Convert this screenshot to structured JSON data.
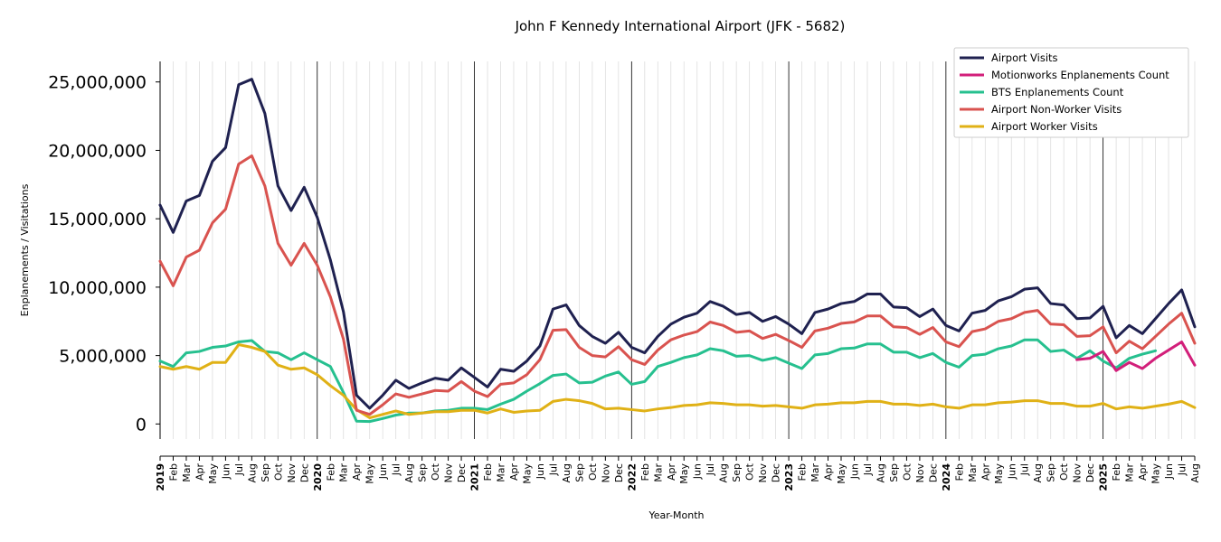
{
  "chart_data": {
    "type": "line",
    "title": "John F Kennedy International Airport (JFK - 5682)",
    "xlabel": "Year-Month",
    "ylabel": "Enplanements / Visitations",
    "ylim": [
      -1100000,
      26500000
    ],
    "yticks": [
      0,
      5000000,
      10000000,
      15000000,
      20000000,
      25000000
    ],
    "ytick_labels": [
      "0",
      "5,000,000",
      "10,000,000",
      "15,000,000",
      "20,000,000",
      "25,000,000"
    ],
    "grid": "vertical month lines, dark lines at year boundaries",
    "legend_placement": "top-right",
    "months": [
      "2019-01",
      "2019-02",
      "2019-03",
      "2019-04",
      "2019-05",
      "2019-06",
      "2019-07",
      "2019-08",
      "2019-09",
      "2019-10",
      "2019-11",
      "2019-12",
      "2020-01",
      "2020-02",
      "2020-03",
      "2020-04",
      "2020-05",
      "2020-06",
      "2020-07",
      "2020-08",
      "2020-09",
      "2020-10",
      "2020-11",
      "2020-12",
      "2021-01",
      "2021-02",
      "2021-03",
      "2021-04",
      "2021-05",
      "2021-06",
      "2021-07",
      "2021-08",
      "2021-09",
      "2021-10",
      "2021-11",
      "2021-12",
      "2022-01",
      "2022-02",
      "2022-03",
      "2022-04",
      "2022-05",
      "2022-06",
      "2022-07",
      "2022-08",
      "2022-09",
      "2022-10",
      "2022-11",
      "2022-12",
      "2023-01",
      "2023-02",
      "2023-03",
      "2023-04",
      "2023-05",
      "2023-06",
      "2023-07",
      "2023-08",
      "2023-09",
      "2023-10",
      "2023-11",
      "2023-12",
      "2024-01",
      "2024-02",
      "2024-03",
      "2024-04",
      "2024-05",
      "2024-06",
      "2024-07",
      "2024-08",
      "2024-09",
      "2024-10",
      "2024-11",
      "2024-12",
      "2025-01",
      "2025-02",
      "2025-03",
      "2025-04",
      "2025-05",
      "2025-06",
      "2025-07",
      "2025-08"
    ],
    "x_tick_labels": [
      "2019",
      "Feb",
      "Mar",
      "Apr",
      "May",
      "Jun",
      "Jul",
      "Aug",
      "Sep",
      "Oct",
      "Nov",
      "Dec",
      "2020",
      "Feb",
      "Mar",
      "Apr",
      "May",
      "Jun",
      "Jul",
      "Aug",
      "Sep",
      "Oct",
      "Nov",
      "Dec",
      "2021",
      "Feb",
      "Mar",
      "Apr",
      "May",
      "Jun",
      "Jul",
      "Aug",
      "Sep",
      "Oct",
      "Nov",
      "Dec",
      "2022",
      "Feb",
      "Mar",
      "Apr",
      "May",
      "Jun",
      "Jul",
      "Aug",
      "Sep",
      "Oct",
      "Nov",
      "Dec",
      "2023",
      "Feb",
      "Mar",
      "Apr",
      "May",
      "Jun",
      "Jul",
      "Aug",
      "Sep",
      "Oct",
      "Nov",
      "Dec",
      "2024",
      "Feb",
      "Mar",
      "Apr",
      "May",
      "Jun",
      "Jul",
      "Aug",
      "Sep",
      "Oct",
      "Nov",
      "Dec",
      "2025",
      "Feb",
      "Mar",
      "Apr",
      "May",
      "Jun",
      "Jul",
      "Aug"
    ],
    "series": [
      {
        "name": "Airport Visits",
        "color": "#1f2150",
        "values": [
          16000000,
          14000000,
          16300000,
          16700000,
          19200000,
          20200000,
          24800000,
          25200000,
          22700000,
          17400000,
          15600000,
          17300000,
          15100000,
          12000000,
          8200000,
          2100000,
          1150000,
          2100000,
          3200000,
          2600000,
          3000000,
          3350000,
          3200000,
          4100000,
          3400000,
          2700000,
          4000000,
          3850000,
          4600000,
          5700000,
          8400000,
          8700000,
          7200000,
          6400000,
          5900000,
          6700000,
          5600000,
          5200000,
          6400000,
          7300000,
          7800000,
          8100000,
          8950000,
          8600000,
          8000000,
          8150000,
          7500000,
          7850000,
          7300000,
          6600000,
          8150000,
          8400000,
          8800000,
          8950000,
          9500000,
          9500000,
          8550000,
          8500000,
          7850000,
          8400000,
          7200000,
          6800000,
          8100000,
          8300000,
          9000000,
          9300000,
          9850000,
          9950000,
          8800000,
          8700000,
          7700000,
          7750000,
          8600000,
          6300000,
          7200000,
          6600000,
          7700000,
          8800000,
          9800000,
          7100000
        ]
      },
      {
        "name": "Motionworks Enplanements Count",
        "color": "#d21f7a",
        "values": [
          null,
          null,
          null,
          null,
          null,
          null,
          null,
          null,
          null,
          null,
          null,
          null,
          null,
          null,
          null,
          null,
          null,
          null,
          null,
          null,
          null,
          null,
          null,
          null,
          null,
          null,
          null,
          null,
          null,
          null,
          null,
          null,
          null,
          null,
          null,
          null,
          null,
          null,
          null,
          null,
          null,
          null,
          null,
          null,
          null,
          null,
          null,
          null,
          null,
          null,
          null,
          null,
          null,
          null,
          null,
          null,
          null,
          null,
          null,
          null,
          null,
          null,
          null,
          null,
          null,
          null,
          null,
          null,
          null,
          null,
          4700000,
          4800000,
          5300000,
          3900000,
          4500000,
          4050000,
          4800000,
          5400000,
          6000000,
          4300000
        ]
      },
      {
        "name": "BTS Enplanements Count",
        "color": "#26c08f",
        "values": [
          4600000,
          4200000,
          5200000,
          5300000,
          5600000,
          5700000,
          6000000,
          6100000,
          5300000,
          5200000,
          4700000,
          5200000,
          4700000,
          4200000,
          2300000,
          200000,
          180000,
          400000,
          650000,
          800000,
          800000,
          950000,
          1000000,
          1150000,
          1150000,
          1050000,
          1450000,
          1800000,
          2400000,
          2950000,
          3550000,
          3650000,
          3000000,
          3050000,
          3500000,
          3800000,
          2900000,
          3100000,
          4200000,
          4500000,
          4850000,
          5050000,
          5500000,
          5350000,
          4950000,
          5000000,
          4650000,
          4850000,
          4450000,
          4050000,
          5050000,
          5150000,
          5500000,
          5550000,
          5850000,
          5850000,
          5250000,
          5250000,
          4850000,
          5150000,
          4500000,
          4150000,
          5000000,
          5100000,
          5500000,
          5700000,
          6150000,
          6150000,
          5300000,
          5400000,
          4800000,
          5350000,
          4600000,
          4100000,
          4800000,
          5100000,
          5350000,
          null,
          null,
          null
        ]
      },
      {
        "name": "Airport Non-Worker Visits",
        "color": "#d9534f",
        "values": [
          11900000,
          10100000,
          12200000,
          12700000,
          14700000,
          15700000,
          19000000,
          19600000,
          17400000,
          13200000,
          11600000,
          13200000,
          11600000,
          9300000,
          6200000,
          1000000,
          700000,
          1400000,
          2200000,
          1950000,
          2200000,
          2450000,
          2400000,
          3100000,
          2400000,
          2000000,
          2900000,
          3000000,
          3600000,
          4700000,
          6850000,
          6900000,
          5600000,
          5000000,
          4900000,
          5650000,
          4700000,
          4350000,
          5400000,
          6150000,
          6500000,
          6750000,
          7450000,
          7200000,
          6700000,
          6800000,
          6250000,
          6550000,
          6100000,
          5600000,
          6800000,
          7000000,
          7350000,
          7450000,
          7900000,
          7900000,
          7100000,
          7050000,
          6550000,
          7050000,
          6000000,
          5650000,
          6750000,
          6950000,
          7500000,
          7700000,
          8150000,
          8300000,
          7300000,
          7250000,
          6400000,
          6450000,
          7100000,
          5200000,
          6050000,
          5500000,
          6400000,
          7300000,
          8100000,
          5900000
        ]
      },
      {
        "name": "Airport Worker Visits",
        "color": "#e0b116",
        "values": [
          4200000,
          4000000,
          4200000,
          4000000,
          4500000,
          4500000,
          5800000,
          5600000,
          5300000,
          4300000,
          4000000,
          4100000,
          3600000,
          2800000,
          2100000,
          1050000,
          450000,
          700000,
          950000,
          700000,
          800000,
          900000,
          900000,
          1000000,
          1000000,
          800000,
          1100000,
          850000,
          950000,
          1000000,
          1650000,
          1800000,
          1700000,
          1500000,
          1100000,
          1150000,
          1050000,
          950000,
          1100000,
          1200000,
          1350000,
          1400000,
          1550000,
          1500000,
          1400000,
          1400000,
          1300000,
          1350000,
          1250000,
          1150000,
          1400000,
          1450000,
          1550000,
          1550000,
          1650000,
          1650000,
          1450000,
          1450000,
          1350000,
          1450000,
          1250000,
          1150000,
          1400000,
          1400000,
          1550000,
          1600000,
          1700000,
          1700000,
          1500000,
          1500000,
          1300000,
          1300000,
          1500000,
          1100000,
          1250000,
          1150000,
          1300000,
          1450000,
          1650000,
          1200000
        ]
      }
    ]
  }
}
